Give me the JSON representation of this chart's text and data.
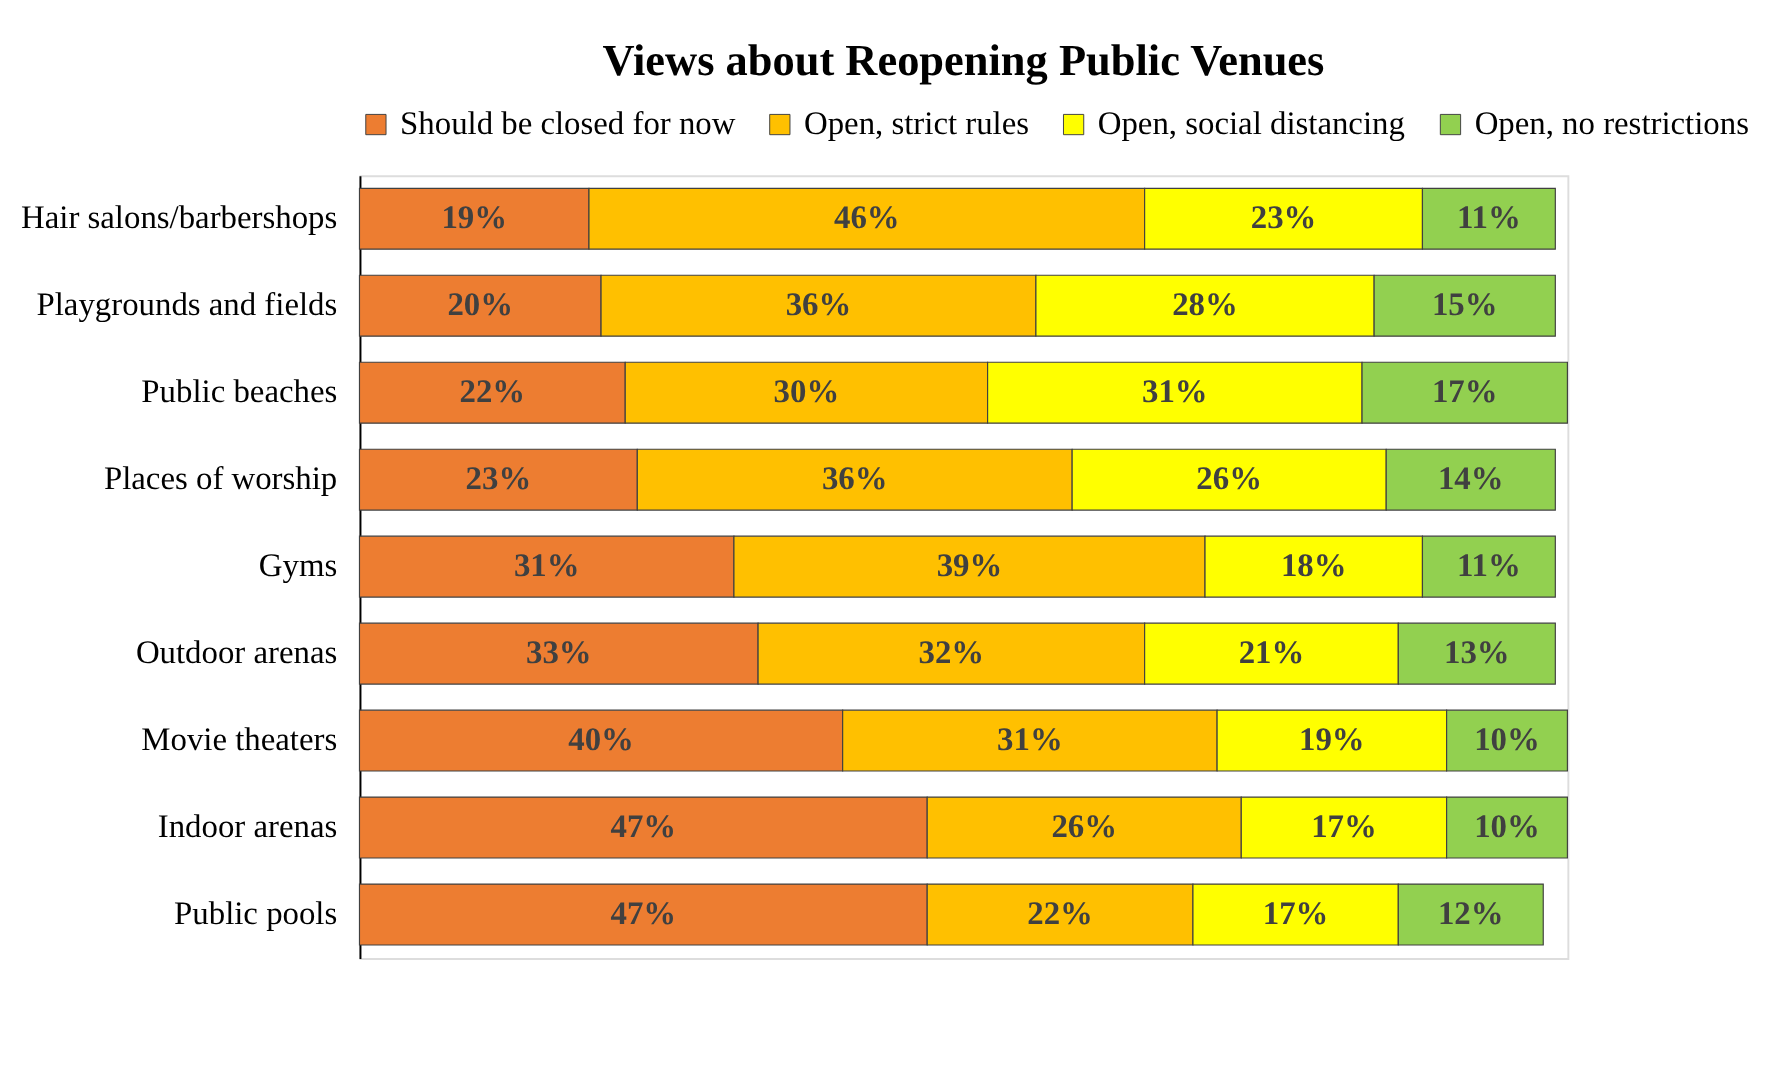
{
  "chart_data": {
    "type": "bar",
    "orientation": "horizontal",
    "stacked": true,
    "title": "Views about Reopening Public Venues",
    "categories": [
      "Hair salons/barbershops",
      "Playgrounds and fields",
      "Public beaches",
      "Places of worship",
      "Gyms",
      "Outdoor arenas",
      "Movie theaters",
      "Indoor arenas",
      "Public pools"
    ],
    "series": [
      {
        "name": "Should be closed for now",
        "color": "#ed7d31",
        "values": [
          19,
          20,
          22,
          23,
          31,
          33,
          40,
          47,
          47
        ],
        "value_labels": [
          "19%",
          "20%",
          "22%",
          "23%",
          "31%",
          "33%",
          "40%",
          "47%",
          "47%"
        ]
      },
      {
        "name": "Open, strict rules",
        "color": "#ffc000",
        "values": [
          46,
          36,
          30,
          36,
          39,
          32,
          31,
          26,
          22
        ],
        "value_labels": [
          "46%",
          "36%",
          "30%",
          "36%",
          "39%",
          "32%",
          "31%",
          "26%",
          "22%"
        ]
      },
      {
        "name": "Open, social distancing",
        "color": "#ffff00",
        "values": [
          23,
          28,
          31,
          26,
          18,
          21,
          19,
          17,
          17
        ],
        "value_labels": [
          "23%",
          "28%",
          "31%",
          "26%",
          "18%",
          "21%",
          "19%",
          "17%",
          "17%"
        ]
      },
      {
        "name": "Open, no restrictions",
        "color": "#92d050",
        "values": [
          11,
          15,
          17,
          14,
          11,
          13,
          10,
          10,
          12
        ],
        "value_labels": [
          "11%",
          "15%",
          "17%",
          "14%",
          "11%",
          "13%",
          "10%",
          "10%",
          "12%"
        ]
      }
    ],
    "xlim": [
      0,
      100
    ],
    "tick_labels": "y",
    "grid": false,
    "legend": "top"
  }
}
